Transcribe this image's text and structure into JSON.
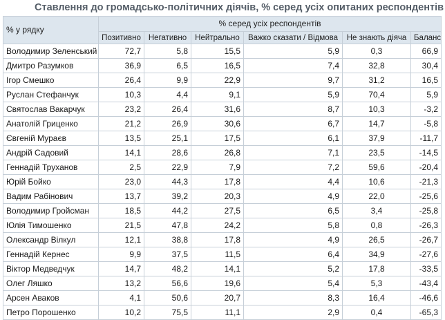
{
  "title": "Ставлення до громадсько-політичних діячів, % серед усіх опитаних респондентів",
  "table": {
    "row_header": "% у рядку",
    "group_header": "% серед усіх респондентів",
    "columns": [
      "Позитивно",
      "Негативно",
      "Нейтрально",
      "Важко сказати / Відмова",
      "Не знають діяча",
      "Баланс"
    ],
    "rows": [
      {
        "name": "Володимир Зеленський",
        "values": [
          "72,7",
          "5,8",
          "15,5",
          "5,9",
          "0,3",
          "66,9"
        ]
      },
      {
        "name": "Дмитро Разумков",
        "values": [
          "36,9",
          "6,5",
          "16,5",
          "7,4",
          "32,8",
          "30,4"
        ]
      },
      {
        "name": "Ігор Смешко",
        "values": [
          "26,4",
          "9,9",
          "22,9",
          "9,7",
          "31,2",
          "16,5"
        ]
      },
      {
        "name": "Руслан Стефанчук",
        "values": [
          "10,3",
          "4,4",
          "9,1",
          "5,9",
          "70,4",
          "5,9"
        ]
      },
      {
        "name": "Святослав Вакарчук",
        "values": [
          "23,2",
          "26,4",
          "31,6",
          "8,7",
          "10,3",
          "-3,2"
        ]
      },
      {
        "name": "Анатолій Гриценко",
        "values": [
          "21,2",
          "26,9",
          "30,6",
          "6,7",
          "14,7",
          "-5,8"
        ]
      },
      {
        "name": "Євгеній Мураєв",
        "values": [
          "13,5",
          "25,1",
          "17,5",
          "6,1",
          "37,9",
          "-11,7"
        ]
      },
      {
        "name": "Андрій Садовий",
        "values": [
          "14,1",
          "28,6",
          "26,8",
          "7,1",
          "23,5",
          "-14,5"
        ]
      },
      {
        "name": "Геннадій Труханов",
        "values": [
          "2,5",
          "22,9",
          "7,9",
          "7,2",
          "59,6",
          "-20,4"
        ]
      },
      {
        "name": "Юрій Бойко",
        "values": [
          "23,0",
          "44,3",
          "17,8",
          "4,4",
          "10,6",
          "-21,3"
        ]
      },
      {
        "name": "Вадим Рабінович",
        "values": [
          "13,7",
          "39,2",
          "20,3",
          "4,9",
          "22,0",
          "-25,6"
        ]
      },
      {
        "name": "Володимир Гройсман",
        "values": [
          "18,5",
          "44,2",
          "27,5",
          "6,5",
          "3,4",
          "-25,8"
        ]
      },
      {
        "name": "Юлія Тимошенко",
        "values": [
          "21,5",
          "47,8",
          "24,2",
          "5,8",
          "0,8",
          "-26,3"
        ]
      },
      {
        "name": "Олександр Вілкул",
        "values": [
          "12,1",
          "38,8",
          "17,8",
          "4,9",
          "26,5",
          "-26,7"
        ]
      },
      {
        "name": "Геннадій Кернес",
        "values": [
          "9,9",
          "37,5",
          "11,5",
          "6,4",
          "34,9",
          "-27,6"
        ]
      },
      {
        "name": "Віктор Медведчук",
        "values": [
          "14,7",
          "48,2",
          "14,1",
          "5,2",
          "17,8",
          "-33,5"
        ]
      },
      {
        "name": "Олег Ляшко",
        "values": [
          "13,2",
          "56,6",
          "19,6",
          "5,4",
          "5,3",
          "-43,4"
        ]
      },
      {
        "name": "Арсен Аваков",
        "values": [
          "4,1",
          "50,6",
          "20,7",
          "8,3",
          "16,4",
          "-46,6"
        ]
      },
      {
        "name": "Петро Порошенко",
        "values": [
          "10,2",
          "75,5",
          "11,1",
          "2,9",
          "0,4",
          "-65,3"
        ]
      }
    ]
  }
}
